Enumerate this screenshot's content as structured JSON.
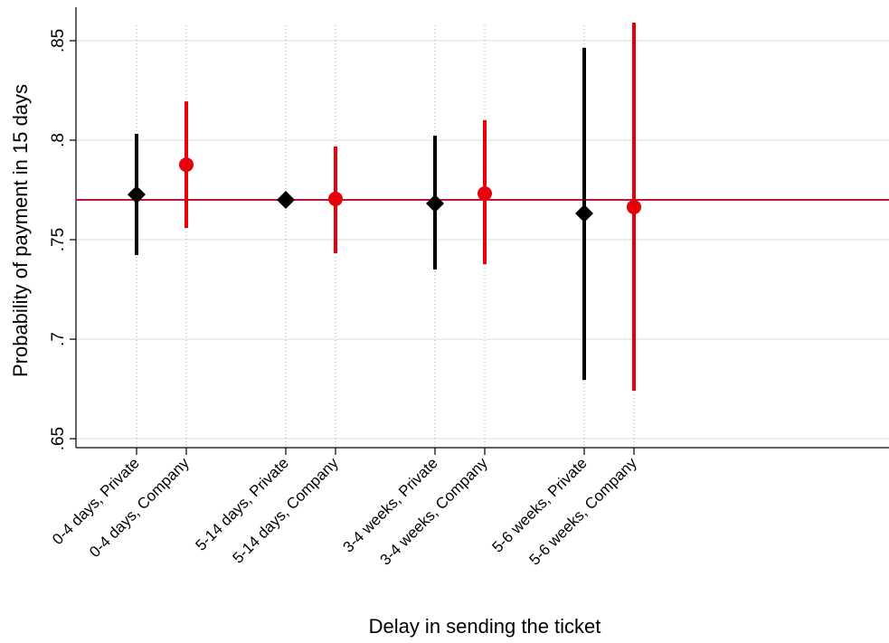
{
  "chart_data": {
    "type": "errorbar",
    "x_label": "Delay in sending the ticket",
    "y_label": "Probability of payment in 15 days",
    "categories": [
      "0-4 days, Private",
      "0-4 days, Company",
      "5-14 days, Private",
      "5-14 days, Company",
      "3-4 weeks, Private",
      "3-4 weeks, Company",
      "5-6 weeks, Private",
      "5-6 weeks, Company"
    ],
    "series": [
      {
        "color": "#000000",
        "marker": "diamond",
        "values": [
          0.7727,
          null,
          0.77,
          null,
          0.7682,
          null,
          0.7632,
          null
        ],
        "lower": [
          0.7423,
          null,
          null,
          null,
          0.735,
          null,
          0.6795,
          null
        ],
        "upper": [
          0.8032,
          null,
          null,
          null,
          0.8023,
          null,
          0.8464,
          null
        ]
      },
      {
        "color": "#e8000b",
        "marker": "circle",
        "values": [
          null,
          0.7877,
          null,
          0.7705,
          null,
          0.7732,
          null,
          0.7664
        ],
        "lower": [
          null,
          0.7559,
          null,
          0.7432,
          null,
          0.7377,
          null,
          0.6741
        ],
        "upper": [
          null,
          0.8195,
          null,
          0.7968,
          null,
          0.81,
          null,
          0.8591
        ]
      }
    ],
    "reference_line": 0.77,
    "reference_color": "#c0143c",
    "ylim": [
      0.6455,
      0.8668
    ],
    "yticks": [
      {
        "value": 0.65,
        "label": ".65"
      },
      {
        "value": 0.7,
        "label": ".7"
      },
      {
        "value": 0.75,
        "label": ".75"
      },
      {
        "value": 0.8,
        "label": ".8"
      },
      {
        "value": 0.85,
        "label": ".85"
      }
    ],
    "grid": true
  }
}
